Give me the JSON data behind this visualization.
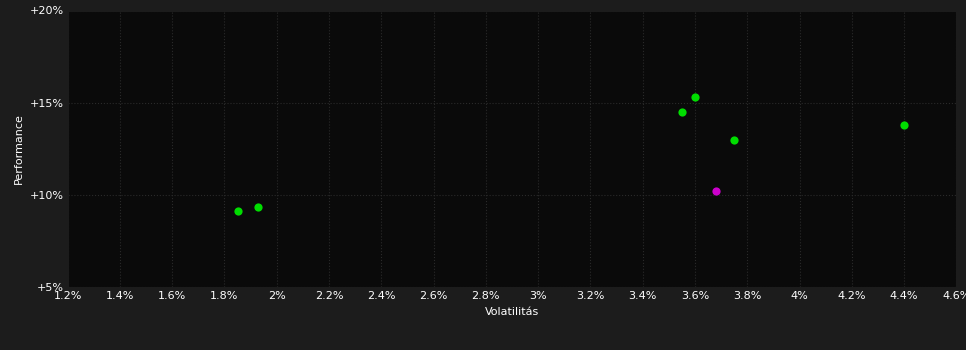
{
  "background_color": "#1c1c1c",
  "plot_bg_color": "#0a0a0a",
  "grid_color": "#2a2a2a",
  "text_color": "#ffffff",
  "xlabel": "Volatilitás",
  "ylabel": "Performance",
  "xlim": [
    0.012,
    0.046
  ],
  "ylim": [
    0.05,
    0.2
  ],
  "xticks": [
    0.012,
    0.014,
    0.016,
    0.018,
    0.02,
    0.022,
    0.024,
    0.026,
    0.028,
    0.03,
    0.032,
    0.034,
    0.036,
    0.038,
    0.04,
    0.042,
    0.044,
    0.046
  ],
  "yticks": [
    0.05,
    0.1,
    0.15,
    0.2
  ],
  "xtick_labels": [
    "1.2%",
    "1.4%",
    "1.6%",
    "1.8%",
    "2%",
    "2.2%",
    "2.4%",
    "2.6%",
    "2.8%",
    "3%",
    "3.2%",
    "3.4%",
    "3.6%",
    "3.8%",
    "4%",
    "4.2%",
    "4.4%",
    "4.6%"
  ],
  "ytick_labels": [
    "+5%",
    "+10%",
    "+15%",
    "+20%"
  ],
  "green_points": [
    [
      0.0185,
      0.091
    ],
    [
      0.0193,
      0.0935
    ],
    [
      0.036,
      0.153
    ],
    [
      0.0355,
      0.145
    ],
    [
      0.0375,
      0.13
    ],
    [
      0.044,
      0.138
    ]
  ],
  "magenta_points": [
    [
      0.0368,
      0.102
    ]
  ],
  "point_size": 35,
  "green_color": "#00dd00",
  "magenta_color": "#cc00cc",
  "label_fontsize": 8,
  "tick_fontsize": 8
}
